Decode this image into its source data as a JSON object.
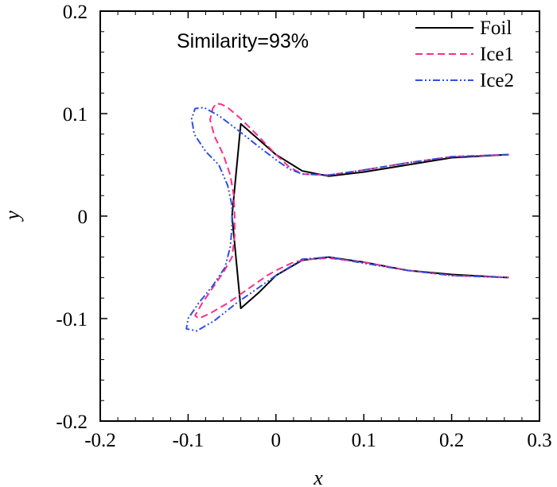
{
  "chart_data": {
    "type": "line",
    "title": "",
    "xlabel": "x",
    "ylabel": "y",
    "xlim": [
      -0.2,
      0.3
    ],
    "ylim": [
      -0.2,
      0.2
    ],
    "xticks": [
      -0.2,
      -0.1,
      0,
      0.1,
      0.2,
      0.3
    ],
    "yticks": [
      -0.2,
      -0.1,
      0,
      0.1,
      0.2
    ],
    "xtick_labels": [
      "-0.2",
      "-0.1",
      "0",
      "0.1",
      "0.2",
      "0.3"
    ],
    "ytick_labels": [
      "-0.2",
      "-0.1",
      "0",
      "0.1",
      "0.2"
    ],
    "annotation": "Similarity=93%",
    "legend_position": "top-right",
    "series": [
      {
        "name": "Foil",
        "color": "#000000",
        "dash": "solid",
        "x": [
          0.265,
          0.2,
          0.15,
          0.1,
          0.06,
          0.03,
          0.0,
          -0.02,
          -0.04,
          -0.05,
          -0.04,
          -0.02,
          0.0,
          0.03,
          0.06,
          0.1,
          0.15,
          0.2,
          0.265
        ],
        "y": [
          0.06,
          0.057,
          0.05,
          0.043,
          0.039,
          0.044,
          0.06,
          0.075,
          0.09,
          0.0,
          -0.09,
          -0.075,
          -0.058,
          -0.043,
          -0.04,
          -0.045,
          -0.053,
          -0.057,
          -0.06
        ]
      },
      {
        "name": "Ice1",
        "color": "#ff2d8a",
        "dash": "dashed",
        "x": [
          0.265,
          0.2,
          0.15,
          0.1,
          0.06,
          0.03,
          0.015,
          0.0,
          -0.02,
          -0.04,
          -0.055,
          -0.062,
          -0.068,
          -0.072,
          -0.075,
          -0.07,
          -0.06,
          -0.052,
          -0.048,
          -0.047,
          -0.047,
          -0.05,
          -0.06,
          -0.072,
          -0.084,
          -0.092,
          -0.088,
          -0.075,
          -0.055,
          -0.03,
          -0.01,
          0.0,
          0.02,
          0.04,
          0.06,
          0.1,
          0.15,
          0.2,
          0.265
        ],
        "y": [
          0.06,
          0.058,
          0.052,
          0.045,
          0.04,
          0.041,
          0.048,
          0.06,
          0.078,
          0.095,
          0.106,
          0.109,
          0.11,
          0.105,
          0.094,
          0.078,
          0.06,
          0.04,
          0.02,
          0.0,
          -0.02,
          -0.04,
          -0.055,
          -0.07,
          -0.085,
          -0.097,
          -0.1,
          -0.095,
          -0.085,
          -0.07,
          -0.058,
          -0.053,
          -0.045,
          -0.042,
          -0.041,
          -0.045,
          -0.053,
          -0.058,
          -0.06
        ]
      },
      {
        "name": "Ice2",
        "color": "#3050e0",
        "dash": "dashdotdot",
        "x": [
          0.265,
          0.2,
          0.15,
          0.1,
          0.06,
          0.03,
          0.015,
          0.0,
          -0.02,
          -0.045,
          -0.065,
          -0.082,
          -0.092,
          -0.096,
          -0.093,
          -0.08,
          -0.065,
          -0.055,
          -0.05,
          -0.05,
          -0.052,
          -0.058,
          -0.072,
          -0.088,
          -0.1,
          -0.102,
          -0.09,
          -0.07,
          -0.045,
          -0.02,
          0.0,
          0.015,
          0.03,
          0.06,
          0.1,
          0.15,
          0.2,
          0.265
        ],
        "y": [
          0.06,
          0.058,
          0.052,
          0.045,
          0.04,
          0.041,
          0.046,
          0.055,
          0.068,
          0.085,
          0.098,
          0.106,
          0.105,
          0.095,
          0.08,
          0.063,
          0.05,
          0.03,
          0.01,
          -0.01,
          -0.03,
          -0.05,
          -0.068,
          -0.085,
          -0.1,
          -0.11,
          -0.112,
          -0.102,
          -0.085,
          -0.07,
          -0.058,
          -0.05,
          -0.042,
          -0.04,
          -0.046,
          -0.053,
          -0.058,
          -0.06
        ]
      }
    ]
  }
}
